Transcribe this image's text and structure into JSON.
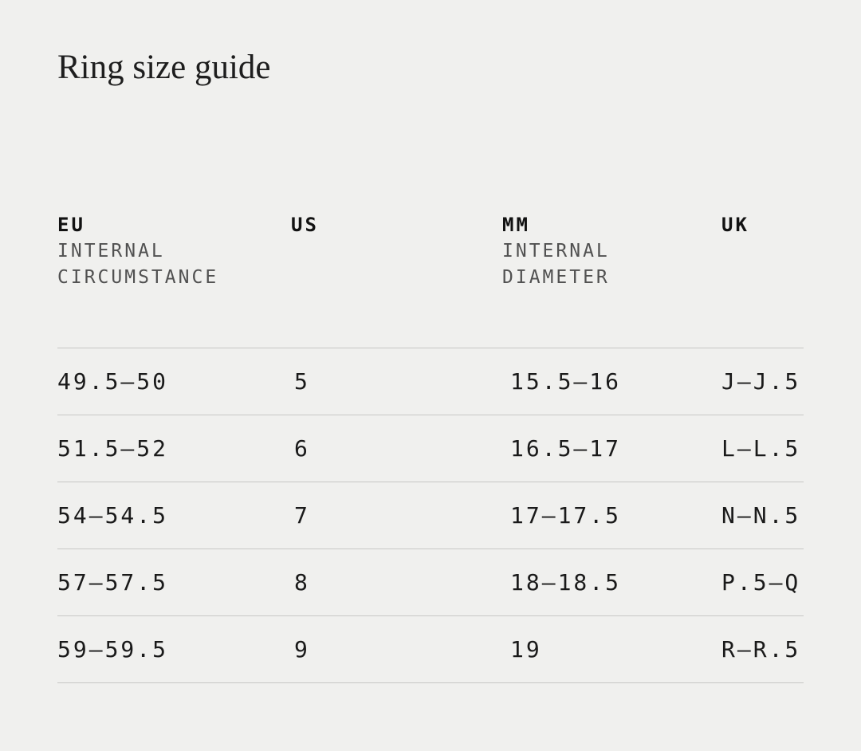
{
  "page": {
    "title": "Ring size guide",
    "background_color": "#f0f0ee",
    "divider_color": "#c7c7c5",
    "text_color": "#1a1a1a",
    "sublabel_color": "#515151"
  },
  "table": {
    "columns": [
      {
        "label": "EU",
        "sublabel": [
          "INTERNAL",
          "CIRCUMSTANCE"
        ]
      },
      {
        "label": "US",
        "sublabel": []
      },
      {
        "label": "MM",
        "sublabel": [
          "INTERNAL",
          "DIAMETER"
        ]
      },
      {
        "label": "UK",
        "sublabel": []
      }
    ],
    "rows": [
      [
        "49.5—50",
        "5",
        "15.5—16",
        "J—J.5"
      ],
      [
        "51.5—52",
        "6",
        "16.5—17",
        "L—L.5"
      ],
      [
        "54—54.5",
        "7",
        "17—17.5",
        "N—N.5"
      ],
      [
        "57—57.5",
        "8",
        "18—18.5",
        "P.5—Q"
      ],
      [
        "59—59.5",
        "9",
        "19",
        "R—R.5"
      ]
    ]
  }
}
